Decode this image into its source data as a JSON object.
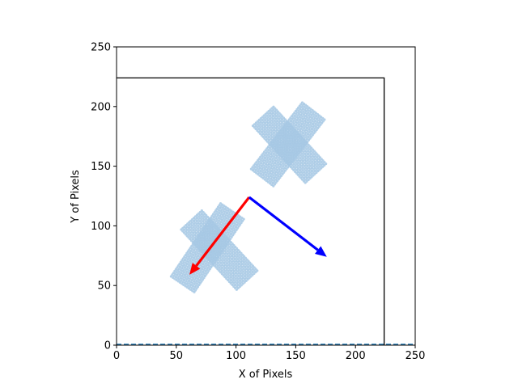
{
  "chart_data": {
    "type": "scatter",
    "title": "",
    "xlabel": "X of Pixels",
    "ylabel": "Y of Pixels",
    "xlim": [
      0,
      250
    ],
    "ylim": [
      0,
      250
    ],
    "xticks": [
      "0",
      "50",
      "100",
      "150",
      "200",
      "250"
    ],
    "yticks": [
      "0",
      "50",
      "100",
      "150",
      "200",
      "250"
    ],
    "grid": false,
    "colors": {
      "scatter": "#a6c8e4",
      "arrow_red": "#ff0000",
      "arrow_blue": "#0000ff",
      "frame": "#000000",
      "dashed_line": "#1f77b4"
    },
    "boundary_rectangle": {
      "x": [
        0,
        224
      ],
      "y": [
        0,
        224
      ]
    },
    "dashed_line": {
      "y": 0,
      "x": [
        0,
        250
      ]
    },
    "shapes": [
      {
        "name": "cross-lower",
        "center": [
          85,
          80
        ],
        "arms": [
          {
            "from": [
              63,
              105
            ],
            "to": [
              110,
              54
            ]
          },
          {
            "from": [
              97,
              112
            ],
            "to": [
              55,
              50
            ]
          }
        ]
      },
      {
        "name": "cross-upper",
        "center": [
          145,
          168
        ],
        "arms": [
          {
            "from": [
              123,
              192
            ],
            "to": [
              168,
              143
            ]
          },
          {
            "from": [
              165,
              196
            ],
            "to": [
              122,
              140
            ]
          }
        ]
      }
    ],
    "arrows": [
      {
        "name": "red-arrow",
        "color": "red",
        "from": [
          111,
          124
        ],
        "to": [
          61,
          59
        ]
      },
      {
        "name": "blue-arrow",
        "color": "blue",
        "from": [
          111,
          124
        ],
        "to": [
          176,
          74
        ]
      }
    ]
  }
}
